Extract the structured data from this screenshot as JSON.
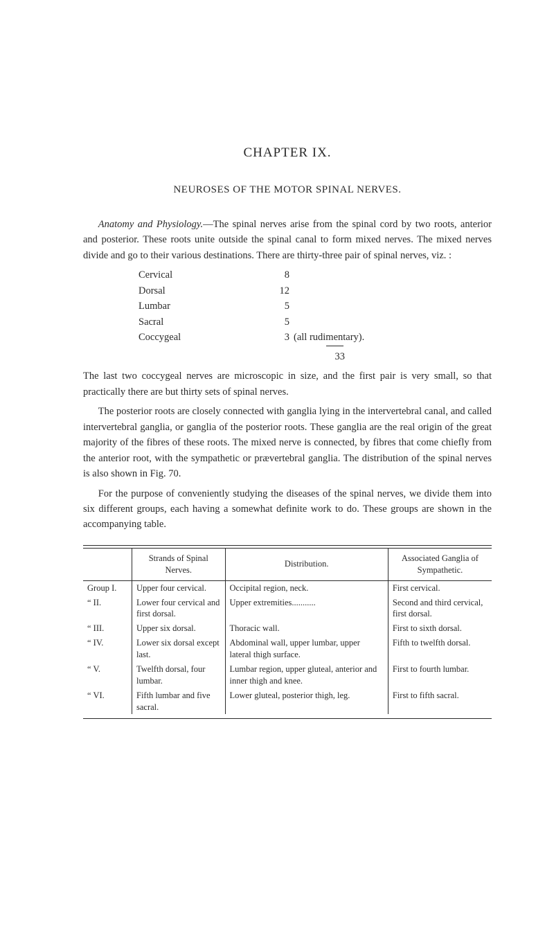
{
  "chapter_title": "CHAPTER IX.",
  "chapter_subtitle": "NEUROSES OF THE MOTOR SPINAL NERVES.",
  "para1_lead_italic": "Anatomy and Physiology.",
  "para1_rest": "—The spinal nerves arise from the spinal cord by two roots, anterior and posterior. These roots unite outside the spinal canal to form mixed nerves. The mixed nerves divide and go to their various destinations. There are thirty-three pair of spinal nerves, viz. :",
  "vertebral_list": [
    {
      "label": "Cervical",
      "dots": "..................................",
      "num": "8",
      "note": ""
    },
    {
      "label": "Dorsal",
      "dots": "....................................",
      "num": "12",
      "note": ""
    },
    {
      "label": "Lumbar",
      "dots": "...................................",
      "num": "5",
      "note": ""
    },
    {
      "label": "Sacral",
      "dots": "....................................",
      "num": "5",
      "note": ""
    },
    {
      "label": "Coccygeal",
      "dots": ".................................",
      "num": "3",
      "note": " (all rudimentary)."
    }
  ],
  "vertebral_total": "33",
  "para2": "The last two coccygeal nerves are microscopic in size, and the first pair is very small, so that practically there are but thirty sets of spinal nerves.",
  "para3": "The posterior roots are closely connected with ganglia lying in the intervertebral canal, and called intervertebral ganglia, or ganglia of the posterior roots. These ganglia are the real origin of the great majority of the fibres of these roots. The mixed nerve is connected, by fibres that come chiefly from the anterior root, with the sympathetic or prævertebral ganglia. The distribution of the spinal nerves is also shown in Fig. 70.",
  "para4": "For the purpose of conveniently studying the diseases of the spinal nerves, we divide them into six different groups, each having a somewhat definite work to do. These groups are shown in the accompanying table.",
  "table": {
    "headers": {
      "blank": "",
      "strands": "Strands of Spinal Nerves.",
      "dist": "Distribution.",
      "assoc": "Associated Ganglia of Sympathetic."
    },
    "rows": [
      {
        "rn": "Group   I.",
        "strands": "Upper four cervical.",
        "dist": "Occipital region, neck.",
        "assoc": "First cervical."
      },
      {
        "rn": "“        II.",
        "strands": "Lower four cervical and first dorsal.",
        "dist": "Upper extremities...........",
        "assoc": "Second and third cervical, first dorsal."
      },
      {
        "rn": "“       III.",
        "strands": "Upper six dorsal.",
        "dist": "Thoracic wall.",
        "assoc": "First to sixth dorsal."
      },
      {
        "rn": "“       IV.",
        "strands": "Lower six dorsal except last.",
        "dist": "Abdominal wall, upper lumbar, upper lateral thigh surface.",
        "assoc": "Fifth to twelfth dorsal."
      },
      {
        "rn": "“        V.",
        "strands": "Twelfth dorsal, four lumbar.",
        "dist": "Lumbar region, upper gluteal, anterior and inner thigh and knee.",
        "assoc": "First to fourth lumbar."
      },
      {
        "rn": "“       VI.",
        "strands": "Fifth lumbar and five sacral.",
        "dist": "Lower gluteal, posterior thigh, leg.",
        "assoc": "First to fifth sacral."
      }
    ]
  }
}
